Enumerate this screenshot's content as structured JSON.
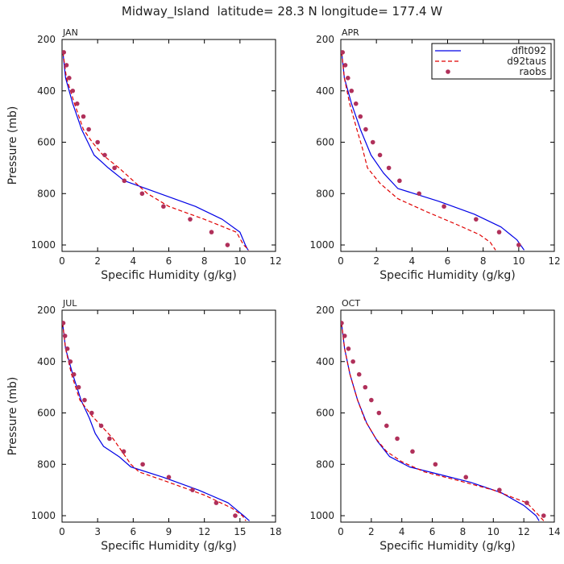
{
  "figure_title": "Midway_Island  latitude= 28.3 N longitude= 177.4 W",
  "colors": {
    "dflt092": "#0000e6",
    "d92taus": "#e00000",
    "raobs": "#b0305a"
  },
  "legend": {
    "placement": "top-right of APR panel",
    "entries": [
      "dflt092",
      "d92taus",
      "raobs"
    ]
  },
  "chart_data": [
    {
      "type": "line",
      "panel_label": "JAN",
      "xlabel": "Specific Humidity (g/kg)",
      "ylabel": "Pressure (mb)",
      "xlim": [
        0,
        12
      ],
      "xticks": [
        0,
        2,
        4,
        6,
        8,
        10,
        12
      ],
      "ylim": [
        1025,
        200
      ],
      "yticks": [
        200,
        400,
        600,
        800,
        1000
      ],
      "grid": false,
      "series": [
        {
          "name": "dflt092",
          "style": "solid line",
          "points": [
            [
              0.05,
              250
            ],
            [
              0.2,
              350
            ],
            [
              0.6,
              450
            ],
            [
              1.1,
              550
            ],
            [
              1.8,
              650
            ],
            [
              2.6,
              700
            ],
            [
              3.5,
              750
            ],
            [
              5.5,
              800
            ],
            [
              7.5,
              850
            ],
            [
              9.0,
              900
            ],
            [
              10.0,
              950
            ],
            [
              10.3,
              1000
            ],
            [
              10.45,
              1020
            ]
          ]
        },
        {
          "name": "d92taus",
          "style": "dashed line",
          "points": [
            [
              0.05,
              250
            ],
            [
              0.25,
              350
            ],
            [
              0.7,
              450
            ],
            [
              1.2,
              550
            ],
            [
              1.7,
              600
            ],
            [
              2.3,
              650
            ],
            [
              3.2,
              700
            ],
            [
              4.0,
              750
            ],
            [
              4.8,
              800
            ],
            [
              6.0,
              850
            ],
            [
              8.0,
              900
            ],
            [
              9.8,
              950
            ],
            [
              10.2,
              1000
            ],
            [
              10.5,
              1020
            ]
          ]
        },
        {
          "name": "raobs",
          "style": "markers",
          "points": [
            [
              0.1,
              250
            ],
            [
              0.25,
              300
            ],
            [
              0.4,
              350
            ],
            [
              0.6,
              400
            ],
            [
              0.85,
              450
            ],
            [
              1.2,
              500
            ],
            [
              1.5,
              550
            ],
            [
              2.0,
              600
            ],
            [
              2.4,
              650
            ],
            [
              2.95,
              700
            ],
            [
              3.5,
              750
            ],
            [
              4.5,
              800
            ],
            [
              5.7,
              850
            ],
            [
              7.2,
              900
            ],
            [
              8.4,
              950
            ],
            [
              9.3,
              1000
            ]
          ]
        }
      ]
    },
    {
      "type": "line",
      "panel_label": "APR",
      "xlabel": "Specific Humidity (g/kg)",
      "ylabel": "",
      "xlim": [
        0,
        12
      ],
      "xticks": [
        0,
        2,
        4,
        6,
        8,
        10,
        12
      ],
      "ylim": [
        1025,
        200
      ],
      "yticks": [
        200,
        400,
        600,
        800,
        1000
      ],
      "grid": false,
      "series": [
        {
          "name": "dflt092",
          "style": "solid line",
          "points": [
            [
              0.05,
              250
            ],
            [
              0.2,
              350
            ],
            [
              0.6,
              450
            ],
            [
              1.1,
              550
            ],
            [
              1.7,
              650
            ],
            [
              2.4,
              720
            ],
            [
              3.2,
              780
            ],
            [
              5.5,
              830
            ],
            [
              7.5,
              880
            ],
            [
              9.0,
              930
            ],
            [
              9.9,
              980
            ],
            [
              10.3,
              1020
            ]
          ]
        },
        {
          "name": "d92taus",
          "style": "dashed line",
          "points": [
            [
              0.05,
              250
            ],
            [
              0.2,
              350
            ],
            [
              0.5,
              450
            ],
            [
              0.9,
              550
            ],
            [
              1.2,
              620
            ],
            [
              1.5,
              700
            ],
            [
              2.2,
              760
            ],
            [
              3.2,
              820
            ],
            [
              4.8,
              870
            ],
            [
              6.5,
              920
            ],
            [
              7.8,
              960
            ],
            [
              8.4,
              990
            ],
            [
              8.7,
              1020
            ]
          ]
        },
        {
          "name": "raobs",
          "style": "markers",
          "points": [
            [
              0.1,
              250
            ],
            [
              0.25,
              300
            ],
            [
              0.4,
              350
            ],
            [
              0.6,
              400
            ],
            [
              0.85,
              450
            ],
            [
              1.1,
              500
            ],
            [
              1.4,
              550
            ],
            [
              1.8,
              600
            ],
            [
              2.2,
              650
            ],
            [
              2.7,
              700
            ],
            [
              3.3,
              750
            ],
            [
              4.4,
              800
            ],
            [
              5.8,
              850
            ],
            [
              7.6,
              900
            ],
            [
              8.9,
              950
            ],
            [
              10.0,
              1000
            ]
          ]
        }
      ]
    },
    {
      "type": "line",
      "panel_label": "JUL",
      "xlabel": "Specific Humidity (g/kg)",
      "ylabel": "Pressure (mb)",
      "xlim": [
        0,
        18
      ],
      "xticks": [
        0,
        3,
        6,
        9,
        12,
        15,
        18
      ],
      "ylim": [
        1025,
        200
      ],
      "yticks": [
        200,
        400,
        600,
        800,
        1000
      ],
      "grid": false,
      "series": [
        {
          "name": "dflt092",
          "style": "solid line",
          "points": [
            [
              0.05,
              250
            ],
            [
              0.3,
              350
            ],
            [
              0.9,
              450
            ],
            [
              1.6,
              550
            ],
            [
              2.3,
              620
            ],
            [
              2.8,
              680
            ],
            [
              3.5,
              730
            ],
            [
              4.8,
              770
            ],
            [
              5.8,
              810
            ],
            [
              8.5,
              850
            ],
            [
              11.5,
              900
            ],
            [
              14.0,
              950
            ],
            [
              15.3,
              1000
            ],
            [
              15.8,
              1020
            ]
          ]
        },
        {
          "name": "d92taus",
          "style": "dashed line",
          "points": [
            [
              0.05,
              250
            ],
            [
              0.3,
              350
            ],
            [
              0.8,
              450
            ],
            [
              1.5,
              550
            ],
            [
              2.5,
              610
            ],
            [
              3.3,
              650
            ],
            [
              4.3,
              700
            ],
            [
              5.2,
              760
            ],
            [
              5.8,
              800
            ],
            [
              6.5,
              830
            ],
            [
              9.0,
              870
            ],
            [
              12.0,
              920
            ],
            [
              14.3,
              970
            ],
            [
              15.2,
              1000
            ],
            [
              15.5,
              1020
            ]
          ]
        },
        {
          "name": "raobs",
          "style": "markers",
          "points": [
            [
              0.1,
              250
            ],
            [
              0.25,
              300
            ],
            [
              0.45,
              350
            ],
            [
              0.7,
              400
            ],
            [
              1.0,
              450
            ],
            [
              1.4,
              500
            ],
            [
              1.9,
              550
            ],
            [
              2.5,
              600
            ],
            [
              3.3,
              650
            ],
            [
              4.0,
              700
            ],
            [
              5.2,
              750
            ],
            [
              6.8,
              800
            ],
            [
              9.0,
              850
            ],
            [
              11.0,
              900
            ],
            [
              13.0,
              950
            ],
            [
              14.6,
              1000
            ]
          ]
        }
      ]
    },
    {
      "type": "line",
      "panel_label": "OCT",
      "xlabel": "Specific Humidity (g/kg)",
      "ylabel": "",
      "xlim": [
        0,
        14
      ],
      "xticks": [
        0,
        2,
        4,
        6,
        8,
        10,
        12,
        14
      ],
      "ylim": [
        1025,
        200
      ],
      "yticks": [
        200,
        400,
        600,
        800,
        1000
      ],
      "grid": false,
      "series": [
        {
          "name": "dflt092",
          "style": "solid line",
          "points": [
            [
              0.05,
              250
            ],
            [
              0.25,
              350
            ],
            [
              0.6,
              450
            ],
            [
              1.1,
              550
            ],
            [
              1.7,
              640
            ],
            [
              2.4,
              710
            ],
            [
              3.2,
              770
            ],
            [
              4.5,
              810
            ],
            [
              6.5,
              840
            ],
            [
              8.5,
              870
            ],
            [
              10.5,
              910
            ],
            [
              12.0,
              960
            ],
            [
              12.8,
              1000
            ],
            [
              13.0,
              1020
            ]
          ]
        },
        {
          "name": "d92taus",
          "style": "dashed line",
          "points": [
            [
              0.05,
              250
            ],
            [
              0.25,
              350
            ],
            [
              0.6,
              450
            ],
            [
              1.1,
              550
            ],
            [
              1.6,
              630
            ],
            [
              2.3,
              700
            ],
            [
              3.0,
              750
            ],
            [
              4.0,
              790
            ],
            [
              5.5,
              830
            ],
            [
              7.5,
              860
            ],
            [
              10.0,
              900
            ],
            [
              12.2,
              950
            ],
            [
              13.0,
              1000
            ],
            [
              13.3,
              1020
            ]
          ]
        },
        {
          "name": "raobs",
          "style": "markers",
          "points": [
            [
              0.05,
              250
            ],
            [
              0.25,
              300
            ],
            [
              0.5,
              350
            ],
            [
              0.8,
              400
            ],
            [
              1.2,
              450
            ],
            [
              1.6,
              500
            ],
            [
              2.0,
              550
            ],
            [
              2.5,
              600
            ],
            [
              3.0,
              650
            ],
            [
              3.7,
              700
            ],
            [
              4.7,
              750
            ],
            [
              6.2,
              800
            ],
            [
              8.2,
              850
            ],
            [
              10.4,
              900
            ],
            [
              12.2,
              950
            ],
            [
              13.3,
              1000
            ]
          ]
        }
      ]
    }
  ]
}
